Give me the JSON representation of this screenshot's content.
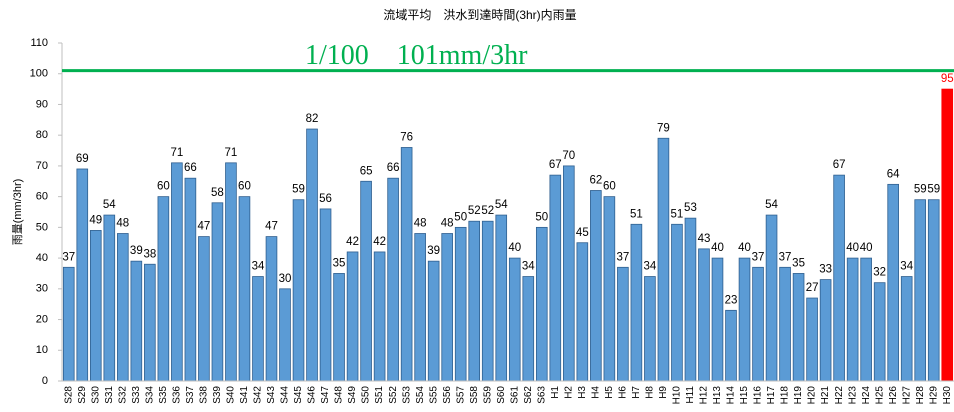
{
  "chart_data": {
    "type": "bar",
    "title": "流域平均　洪水到達時間(3hr)内雨量",
    "y_label": "雨量(mm/3hr)",
    "categories": [
      "S28",
      "S29",
      "S30",
      "S31",
      "S32",
      "S33",
      "S34",
      "S35",
      "S36",
      "S37",
      "S38",
      "S39",
      "S40",
      "S41",
      "S42",
      "S43",
      "S44",
      "S45",
      "S46",
      "S47",
      "S48",
      "S49",
      "S50",
      "S51",
      "S52",
      "S53",
      "S54",
      "S55",
      "S56",
      "S57",
      "S58",
      "S59",
      "S60",
      "S61",
      "S62",
      "S63",
      "H1",
      "H2",
      "H3",
      "H4",
      "H5",
      "H6",
      "H7",
      "H8",
      "H9",
      "H10",
      "H11",
      "H12",
      "H13",
      "H14",
      "H15",
      "H16",
      "H17",
      "H18",
      "H19",
      "H20",
      "H21",
      "H22",
      "H23",
      "H24",
      "H25",
      "H26",
      "H27",
      "H28",
      "H29",
      "H30"
    ],
    "values": [
      37,
      69,
      49,
      54,
      48,
      39,
      38,
      60,
      71,
      66,
      47,
      58,
      71,
      60,
      34,
      47,
      30,
      59,
      82,
      56,
      35,
      42,
      65,
      42,
      66,
      76,
      48,
      39,
      48,
      50,
      52,
      52,
      54,
      40,
      34,
      50,
      67,
      70,
      45,
      62,
      60,
      37,
      51,
      34,
      79,
      51,
      53,
      43,
      40,
      23,
      40,
      37,
      54,
      37,
      35,
      27,
      33,
      67,
      40,
      40,
      32,
      64,
      34,
      59,
      59,
      95
    ],
    "color": "#5b9bd5",
    "colors": [
      "#5b9bd5",
      "#5b9bd5",
      "#5b9bd5",
      "#5b9bd5",
      "#5b9bd5",
      "#5b9bd5",
      "#5b9bd5",
      "#5b9bd5",
      "#5b9bd5",
      "#5b9bd5",
      "#5b9bd5",
      "#5b9bd5",
      "#5b9bd5",
      "#5b9bd5",
      "#5b9bd5",
      "#5b9bd5",
      "#5b9bd5",
      "#5b9bd5",
      "#5b9bd5",
      "#5b9bd5",
      "#5b9bd5",
      "#5b9bd5",
      "#5b9bd5",
      "#5b9bd5",
      "#5b9bd5",
      "#5b9bd5",
      "#5b9bd5",
      "#5b9bd5",
      "#5b9bd5",
      "#5b9bd5",
      "#5b9bd5",
      "#5b9bd5",
      "#5b9bd5",
      "#5b9bd5",
      "#5b9bd5",
      "#5b9bd5",
      "#5b9bd5",
      "#5b9bd5",
      "#5b9bd5",
      "#5b9bd5",
      "#5b9bd5",
      "#5b9bd5",
      "#5b9bd5",
      "#5b9bd5",
      "#5b9bd5",
      "#5b9bd5",
      "#5b9bd5",
      "#5b9bd5",
      "#5b9bd5",
      "#5b9bd5",
      "#5b9bd5",
      "#5b9bd5",
      "#5b9bd5",
      "#5b9bd5",
      "#5b9bd5",
      "#5b9bd5",
      "#5b9bd5",
      "#5b9bd5",
      "#5b9bd5",
      "#5b9bd5",
      "#5b9bd5",
      "#5b9bd5",
      "#5b9bd5",
      "#5b9bd5",
      "#5b9bd5",
      "#ff0000"
    ],
    "reference_line": {
      "value": 101,
      "label": "1/100　101mm/3hr",
      "color": "#00b050"
    },
    "ylim": [
      0,
      110
    ],
    "yticks": [
      0,
      10,
      20,
      30,
      40,
      50,
      60,
      70,
      80,
      90,
      100,
      110
    ],
    "grid": false
  }
}
